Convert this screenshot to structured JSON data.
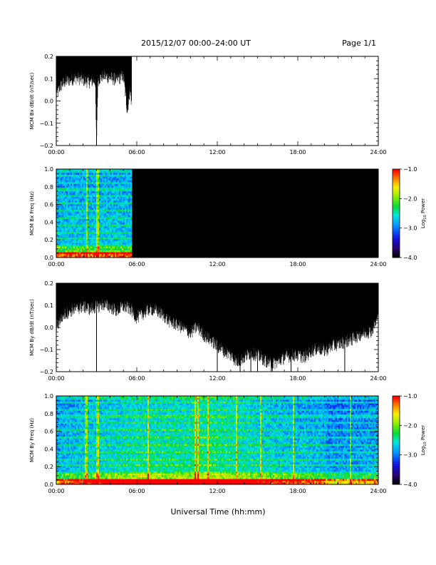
{
  "header": {
    "title": "2015/12/07  00:00–24:00 UT",
    "page_label": "Page 1/1"
  },
  "footer": {
    "xlabel": "Universal Time (hh:mm)"
  },
  "chart_data": [
    {
      "type": "line",
      "name": "bx-dbdt",
      "ylabel": "MCM Bx dB/dt (nT/sec)",
      "xlim": [
        0,
        24
      ],
      "ylim": [
        -0.2,
        0.2
      ],
      "x_tick_labels": [
        "00:00",
        "06:00",
        "12:00",
        "18:00",
        "24:00"
      ],
      "y_ticks": [
        -0.2,
        -0.1,
        0.0,
        0.1,
        0.2
      ],
      "y_tick_labels": [
        "−0.2",
        "−0.1",
        "0.0",
        "0.1",
        "0.2"
      ],
      "data_coverage_hours": [
        0,
        5.6
      ],
      "envelope": {
        "x": [
          0.0,
          0.3,
          0.6,
          1.0,
          1.5,
          2.0,
          2.5,
          2.9,
          3.0,
          3.1,
          3.5,
          4.0,
          4.5,
          5.0,
          5.3,
          5.5,
          5.6
        ],
        "upper": [
          0.2,
          0.2,
          0.2,
          0.2,
          0.2,
          0.2,
          0.2,
          0.2,
          0.2,
          0.2,
          0.2,
          0.2,
          0.2,
          0.2,
          0.2,
          0.2,
          0.2
        ],
        "lower": [
          0.03,
          0.07,
          0.09,
          0.1,
          0.11,
          0.1,
          0.09,
          0.1,
          -0.2,
          0.1,
          0.12,
          0.11,
          0.1,
          0.12,
          -0.04,
          0.06,
          0.0
        ]
      },
      "line_color": "#000000"
    },
    {
      "type": "heatmap",
      "name": "bx-spectrogram",
      "ylabel": "MCM Bx Freq (Hz)",
      "xlim": [
        0,
        24
      ],
      "ylim": [
        0.0,
        1.0
      ],
      "x_tick_labels": [
        "00:00",
        "06:00",
        "12:00",
        "18:00",
        "24:00"
      ],
      "y_ticks": [
        0.0,
        0.2,
        0.4,
        0.6,
        0.8,
        1.0
      ],
      "y_tick_labels": [
        "0.0",
        "0.2",
        "0.4",
        "0.6",
        "0.8",
        "1.0"
      ],
      "data_coverage_hours": [
        0,
        5.6
      ],
      "colorbar": {
        "label": "Log",
        "label_sub": "10",
        "label_tail": " Power",
        "range": [
          -4.0,
          -1.0
        ],
        "ticks": [
          -4.0,
          -3.0,
          -2.0,
          -1.0
        ],
        "tick_labels": [
          "−4.0",
          "−3.0",
          "−2.0",
          "−1.0"
        ]
      },
      "background_color": "#000000"
    },
    {
      "type": "line",
      "name": "by-dbdt",
      "ylabel": "MCM By dB/dt (nT/sec)",
      "xlim": [
        0,
        24
      ],
      "ylim": [
        -0.2,
        0.2
      ],
      "x_tick_labels": [
        "00:00",
        "06:00",
        "12:00",
        "18:00",
        "24:00"
      ],
      "y_ticks": [
        -0.2,
        -0.1,
        0.0,
        0.1,
        0.2
      ],
      "y_tick_labels": [
        "−0.2",
        "−0.1",
        "0.0",
        "0.1",
        "0.2"
      ],
      "data_coverage_hours": [
        0,
        24
      ],
      "envelope": {
        "x": [
          0,
          0.5,
          1,
          1.5,
          2,
          2.5,
          3,
          3.5,
          4,
          4.5,
          5,
          5.5,
          6,
          6.5,
          7,
          7.5,
          8,
          8.5,
          9,
          9.5,
          10,
          10.5,
          11,
          11.5,
          12,
          12.5,
          13,
          13.5,
          14,
          14.5,
          15,
          15.5,
          16,
          16.5,
          17,
          17.5,
          18,
          18.5,
          19,
          19.5,
          20,
          20.5,
          21,
          21.5,
          22,
          22.5,
          23,
          23.5,
          24
        ],
        "upper": [
          0.2,
          0.2,
          0.2,
          0.2,
          0.2,
          0.2,
          0.2,
          0.2,
          0.2,
          0.2,
          0.2,
          0.2,
          0.2,
          0.2,
          0.2,
          0.2,
          0.2,
          0.2,
          0.2,
          0.2,
          0.2,
          0.2,
          0.2,
          0.2,
          0.2,
          0.2,
          0.2,
          0.2,
          0.2,
          0.2,
          0.2,
          0.2,
          0.2,
          0.2,
          0.2,
          0.2,
          0.2,
          0.2,
          0.2,
          0.2,
          0.2,
          0.2,
          0.2,
          0.2,
          0.2,
          0.2,
          0.2,
          0.2,
          0.2
        ],
        "lower": [
          0.01,
          0.06,
          0.08,
          0.09,
          0.1,
          0.09,
          0.1,
          0.11,
          0.1,
          0.08,
          0.1,
          0.09,
          0.05,
          0.07,
          0.09,
          0.08,
          0.06,
          0.03,
          0.02,
          0.0,
          -0.02,
          0.01,
          -0.03,
          -0.05,
          -0.08,
          -0.1,
          -0.12,
          -0.15,
          -0.13,
          -0.11,
          -0.12,
          -0.14,
          -0.16,
          -0.15,
          -0.13,
          -0.12,
          -0.12,
          -0.13,
          -0.1,
          -0.09,
          -0.1,
          -0.08,
          -0.07,
          -0.06,
          -0.05,
          -0.03,
          -0.02,
          -0.01,
          0.05
        ],
        "spikes": [
          [
            3.0,
            -0.2
          ],
          [
            12.0,
            -0.2
          ],
          [
            13.7,
            -0.2
          ],
          [
            14.5,
            -0.2
          ],
          [
            15.0,
            -0.2
          ],
          [
            16.1,
            -0.2
          ],
          [
            17.5,
            -0.2
          ],
          [
            21.5,
            -0.2
          ]
        ]
      },
      "line_color": "#000000"
    },
    {
      "type": "heatmap",
      "name": "by-spectrogram",
      "ylabel": "MCM By Freq (Hz)",
      "xlim": [
        0,
        24
      ],
      "ylim": [
        0.0,
        1.0
      ],
      "x_tick_labels": [
        "00:00",
        "06:00",
        "12:00",
        "18:00",
        "24:00"
      ],
      "y_ticks": [
        0.0,
        0.2,
        0.4,
        0.6,
        0.8,
        1.0
      ],
      "y_tick_labels": [
        "0.0",
        "0.2",
        "0.4",
        "0.6",
        "0.8",
        "1.0"
      ],
      "data_coverage_hours": [
        0,
        24
      ],
      "colorbar": {
        "label": "Log",
        "label_sub": "10",
        "label_tail": " Power",
        "range": [
          -4.0,
          -1.0
        ],
        "ticks": [
          -4.0,
          -3.0,
          -2.0,
          -1.0
        ],
        "tick_labels": [
          "−4.0",
          "−3.0",
          "−2.0",
          "−1.0"
        ]
      },
      "background_color": "#000000"
    }
  ]
}
